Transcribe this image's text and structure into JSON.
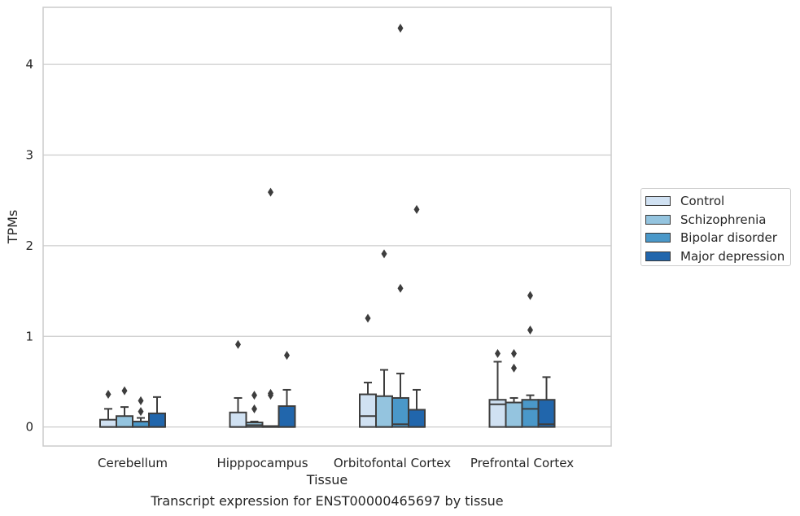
{
  "chart_data": {
    "type": "box",
    "title": "",
    "xlabel": "Tissue",
    "ylabel": "TPMs",
    "caption": "Transcript expression for ENST00000465697 by tissue",
    "categories": [
      "Cerebellum",
      "Hipppocampus",
      "Orbitofontal Cortex",
      "Prefrontal Cortex"
    ],
    "ylim": [
      -0.21,
      4.63
    ],
    "yticks": [
      0,
      1,
      2,
      3,
      4
    ],
    "grid": "horizontal",
    "legend_position": "right",
    "series": [
      {
        "name": "Control",
        "color": "#d0e1f2",
        "boxes": [
          {
            "q1": 0.0,
            "median": 0.0,
            "q3": 0.08,
            "whisker_low": 0.0,
            "whisker_high": 0.2,
            "outliers": [
              0.36
            ]
          },
          {
            "q1": 0.0,
            "median": 0.0,
            "q3": 0.16,
            "whisker_low": 0.0,
            "whisker_high": 0.32,
            "outliers": [
              0.91
            ]
          },
          {
            "q1": 0.0,
            "median": 0.12,
            "q3": 0.36,
            "whisker_low": 0.0,
            "whisker_high": 0.49,
            "outliers": [
              1.2
            ]
          },
          {
            "q1": 0.0,
            "median": 0.25,
            "q3": 0.3,
            "whisker_low": 0.0,
            "whisker_high": 0.72,
            "outliers": [
              0.81
            ]
          }
        ]
      },
      {
        "name": "Schizophrenia",
        "color": "#94c4df",
        "boxes": [
          {
            "q1": 0.0,
            "median": 0.0,
            "q3": 0.12,
            "whisker_low": 0.0,
            "whisker_high": 0.22,
            "outliers": [
              0.4
            ]
          },
          {
            "q1": 0.0,
            "median": 0.02,
            "q3": 0.05,
            "whisker_low": 0.0,
            "whisker_high": 0.06,
            "outliers": [
              0.2,
              0.35
            ]
          },
          {
            "q1": 0.0,
            "median": 0.0,
            "q3": 0.34,
            "whisker_low": 0.0,
            "whisker_high": 0.63,
            "outliers": [
              1.91
            ]
          },
          {
            "q1": 0.0,
            "median": 0.0,
            "q3": 0.27,
            "whisker_low": 0.0,
            "whisker_high": 0.32,
            "outliers": [
              0.65,
              0.81
            ]
          }
        ]
      },
      {
        "name": "Bipolar disorder",
        "color": "#4a98c9",
        "boxes": [
          {
            "q1": 0.0,
            "median": 0.0,
            "q3": 0.06,
            "whisker_low": 0.0,
            "whisker_high": 0.1,
            "outliers": [
              0.17,
              0.29
            ]
          },
          {
            "q1": 0.0,
            "median": 0.0,
            "q3": 0.01,
            "whisker_low": 0.0,
            "whisker_high": 0.01,
            "outliers": [
              0.35,
              0.37,
              2.59
            ]
          },
          {
            "q1": 0.0,
            "median": 0.03,
            "q3": 0.32,
            "whisker_low": 0.0,
            "whisker_high": 0.59,
            "outliers": [
              1.53,
              4.4
            ]
          },
          {
            "q1": 0.0,
            "median": 0.2,
            "q3": 0.3,
            "whisker_low": 0.0,
            "whisker_high": 0.35,
            "outliers": [
              1.07,
              1.45
            ]
          }
        ]
      },
      {
        "name": "Major depression",
        "color": "#2166ac",
        "boxes": [
          {
            "q1": 0.0,
            "median": 0.0,
            "q3": 0.15,
            "whisker_low": 0.0,
            "whisker_high": 0.33,
            "outliers": []
          },
          {
            "q1": 0.0,
            "median": 0.0,
            "q3": 0.23,
            "whisker_low": 0.0,
            "whisker_high": 0.41,
            "outliers": [
              0.79
            ]
          },
          {
            "q1": 0.0,
            "median": 0.0,
            "q3": 0.19,
            "whisker_low": 0.0,
            "whisker_high": 0.41,
            "outliers": [
              2.4
            ]
          },
          {
            "q1": 0.0,
            "median": 0.03,
            "q3": 0.3,
            "whisker_low": 0.0,
            "whisker_high": 0.55,
            "outliers": []
          }
        ]
      }
    ]
  }
}
